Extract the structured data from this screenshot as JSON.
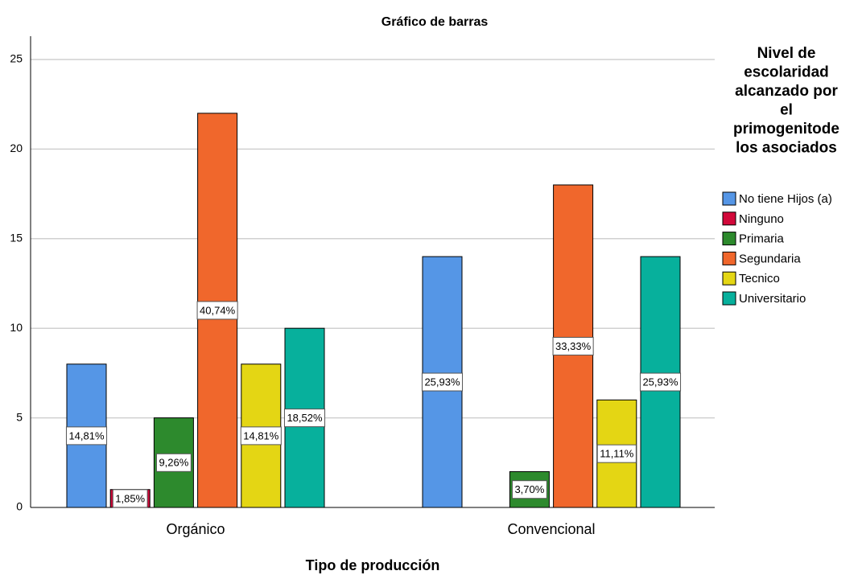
{
  "chart_data": {
    "type": "bar",
    "title": "Gráfico de barras",
    "x_label": "Tipo de producción",
    "legend_title": [
      "Nivel de",
      "escolaridad",
      "alcanzado por",
      "el",
      "primogenitode",
      "los asociados"
    ],
    "categories": [
      "Orgánico",
      "Convencional"
    ],
    "series": [
      {
        "name": "No tiene Hijos (a)",
        "color": "#5596e6",
        "values": [
          8,
          14
        ],
        "value_labels": [
          "14,81%",
          "25,93%"
        ]
      },
      {
        "name": "Ninguno",
        "color": "#d2093a",
        "values": [
          1,
          null
        ],
        "value_labels": [
          "1,85%",
          null
        ]
      },
      {
        "name": "Primaria",
        "color": "#2d8a2d",
        "values": [
          5,
          2
        ],
        "value_labels": [
          "9,26%",
          "3,70%"
        ]
      },
      {
        "name": "Segundaria",
        "color": "#f0672c",
        "values": [
          22,
          18
        ],
        "value_labels": [
          "40,74%",
          "33,33%"
        ]
      },
      {
        "name": "Tecnico",
        "color": "#e4d614",
        "values": [
          8,
          6
        ],
        "value_labels": [
          "14,81%",
          "11,11%"
        ]
      },
      {
        "name": "Universitario",
        "color": "#07b09c",
        "values": [
          10,
          14
        ],
        "value_labels": [
          "18,52%",
          "25,93%"
        ]
      }
    ],
    "ylim": [
      0,
      25
    ],
    "yticks": [
      0,
      5,
      10,
      15,
      20,
      25
    ],
    "grid": true,
    "legend": "right"
  }
}
